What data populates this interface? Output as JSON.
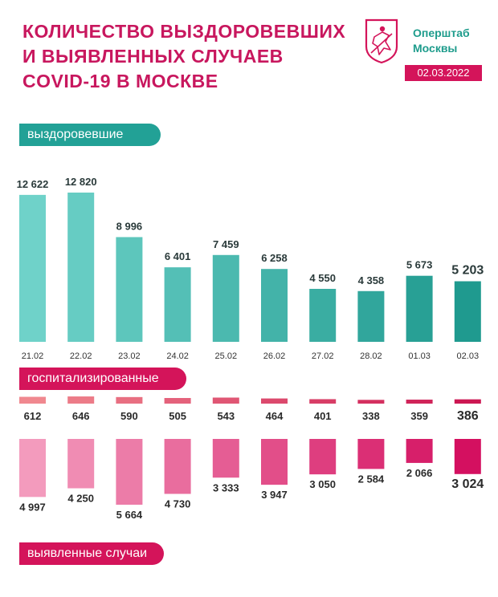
{
  "title": {
    "line1": "КОЛИЧЕСТВО ВЫЗДОРОВЕВШИХ",
    "line2": "И ВЫЯВЛЕННЫХ СЛУЧАЕВ",
    "line3": "COVID-19 В МОСКВЕ"
  },
  "org": {
    "line1": "Оперштаб",
    "line2": "Москвы"
  },
  "date": "02.03.2022",
  "labels": {
    "recovered": "выздоровевшие",
    "hospitalized": "госпитализированные",
    "detected": "выявленные случаи"
  },
  "colors": {
    "title": "#c8175e",
    "teal": "#22a196",
    "magenta": "#d4145a"
  },
  "chart_data": {
    "type": "bar",
    "categories": [
      "21.02",
      "22.02",
      "23.02",
      "24.02",
      "25.02",
      "26.02",
      "27.02",
      "28.02",
      "01.03",
      "02.03"
    ],
    "series": [
      {
        "name": "выздоровевшие",
        "values": [
          12622,
          12820,
          8996,
          6401,
          7459,
          6258,
          4550,
          4358,
          5673,
          5203
        ],
        "labels": [
          "12 622",
          "12 820",
          "8 996",
          "6 401",
          "7 459",
          "6 258",
          "4 550",
          "4 358",
          "5 673",
          "5 203"
        ]
      },
      {
        "name": "госпитализированные",
        "values": [
          612,
          646,
          590,
          505,
          543,
          464,
          401,
          338,
          359,
          386
        ],
        "labels": [
          "612",
          "646",
          "590",
          "505",
          "543",
          "464",
          "401",
          "338",
          "359",
          "386"
        ]
      },
      {
        "name": "выявленные случаи",
        "values": [
          4997,
          4250,
          5664,
          4730,
          3333,
          3947,
          3050,
          2584,
          2066,
          3024
        ],
        "labels": [
          "4 997",
          "4 250",
          "5 664",
          "4 730",
          "3 333",
          "3 947",
          "3 050",
          "2 584",
          "2 066",
          "3 024"
        ]
      }
    ]
  }
}
